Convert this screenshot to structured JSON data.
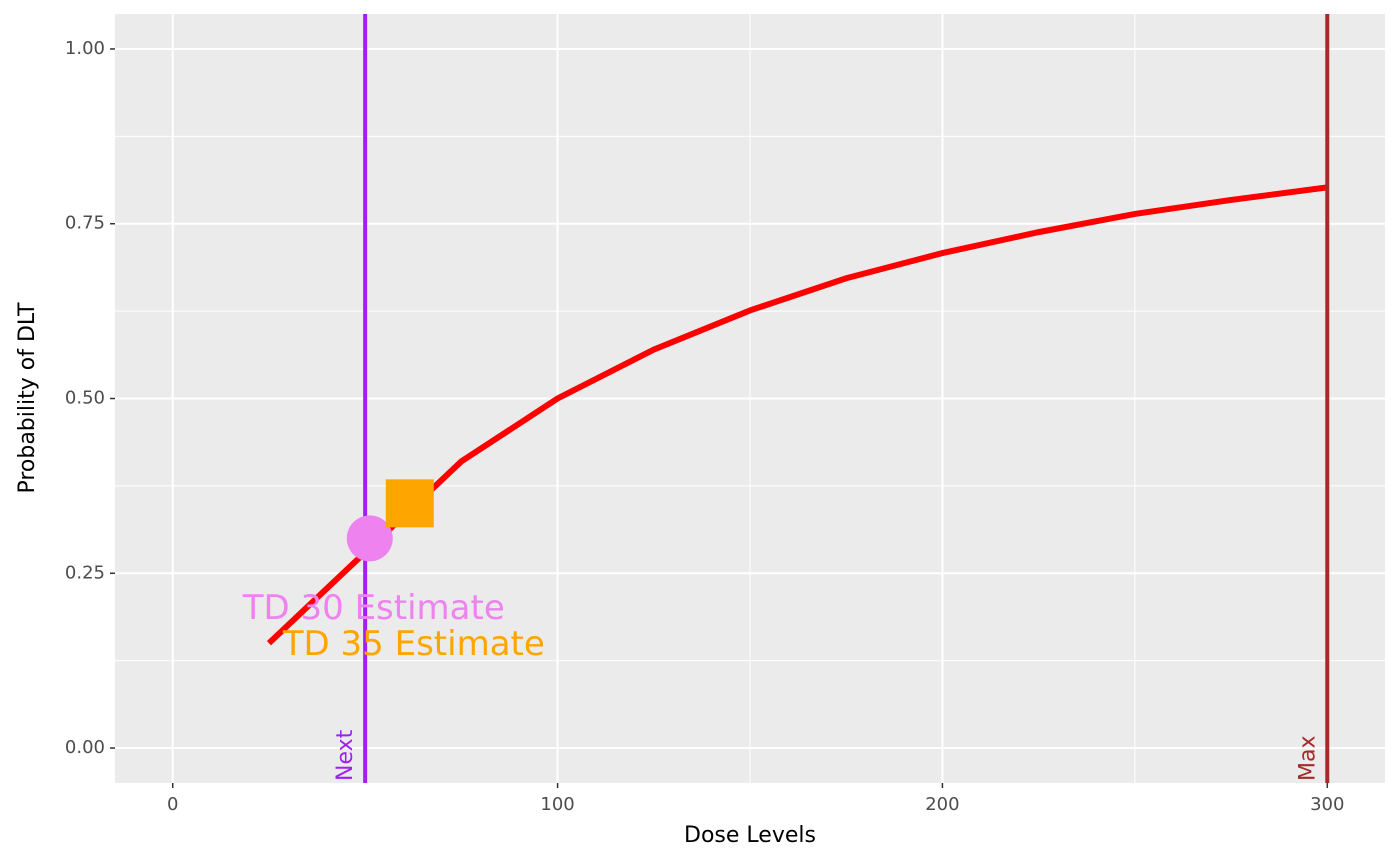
{
  "chart_data": {
    "type": "line",
    "x_label": "Dose Levels",
    "y_label": "Probability of DLT",
    "x": [
      25,
      50,
      75,
      100,
      125,
      150,
      175,
      200,
      225,
      250,
      275,
      300
    ],
    "series": [
      {
        "color": "#ff0000",
        "values": [
          0.15,
          0.28,
          0.41,
          0.5,
          0.57,
          0.626,
          0.672,
          0.708,
          0.738,
          0.764,
          0.784,
          0.802
        ]
      }
    ],
    "points": [
      {
        "label": "TD 30 Estimate",
        "x": 51.2,
        "y": 0.3,
        "color": "#ee82ee",
        "shape": "circle"
      },
      {
        "label": "TD 35 Estimate",
        "x": 61.6,
        "y": 0.35,
        "color": "#ffa500",
        "shape": "square"
      }
    ],
    "vlines": [
      {
        "label": "Next",
        "x": 50,
        "color": "#a020f0"
      },
      {
        "label": "Max",
        "x": 300,
        "color": "#a52a2a"
      }
    ],
    "xlim": [
      -15,
      315
    ],
    "ylim": [
      -0.05,
      1.05
    ],
    "xticks": [
      0,
      100,
      200,
      300
    ],
    "yticks": [
      {
        "value": 0,
        "label": "0.00"
      },
      {
        "value": 0.25,
        "label": "0.25"
      },
      {
        "value": 0.5,
        "label": "0.50"
      },
      {
        "value": 0.75,
        "label": "0.75"
      },
      {
        "value": 1,
        "label": "1.00"
      }
    ],
    "grid": true
  }
}
